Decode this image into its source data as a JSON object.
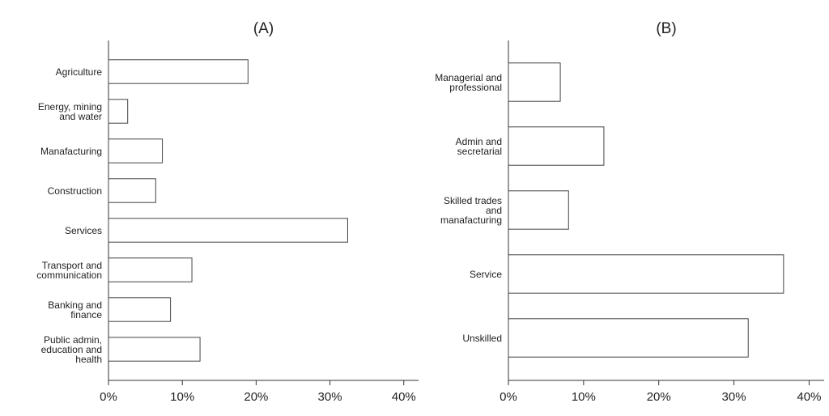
{
  "chart_data": [
    {
      "type": "barh",
      "title": "(A)",
      "categories": [
        "Agriculture",
        "Energy, mining\nand water",
        "Manafacturing",
        "Construction",
        "Services",
        "Transport and\ncommunication",
        "Banking and\nfinance",
        "Public admin,\neducation and\nhealth"
      ],
      "values": [
        18.9,
        2.6,
        7.3,
        6.4,
        32.4,
        11.3,
        8.4,
        12.4
      ],
      "color": "#ffffff",
      "xlim": [
        0,
        42
      ],
      "xticks": [
        {
          "value": 0,
          "label": "0%"
        },
        {
          "value": 10,
          "label": "10%"
        },
        {
          "value": 20,
          "label": "20%"
        },
        {
          "value": 30,
          "label": "30%"
        },
        {
          "value": 40,
          "label": "40%"
        }
      ]
    },
    {
      "type": "barh",
      "title": "(B)",
      "categories": [
        "Managerial and\nprofessional",
        "Admin and\nsecretarial",
        "Skilled trades\nand\nmanafacturing",
        "Service",
        "Unskilled"
      ],
      "values": [
        6.9,
        12.7,
        8.0,
        36.6,
        31.9
      ],
      "color": "#ffffff",
      "xlim": [
        0,
        42
      ],
      "xticks": [
        {
          "value": 0,
          "label": "0%"
        },
        {
          "value": 10,
          "label": "10%"
        },
        {
          "value": 20,
          "label": "20%"
        },
        {
          "value": 30,
          "label": "30%"
        },
        {
          "value": 40,
          "label": "40%"
        }
      ]
    }
  ]
}
